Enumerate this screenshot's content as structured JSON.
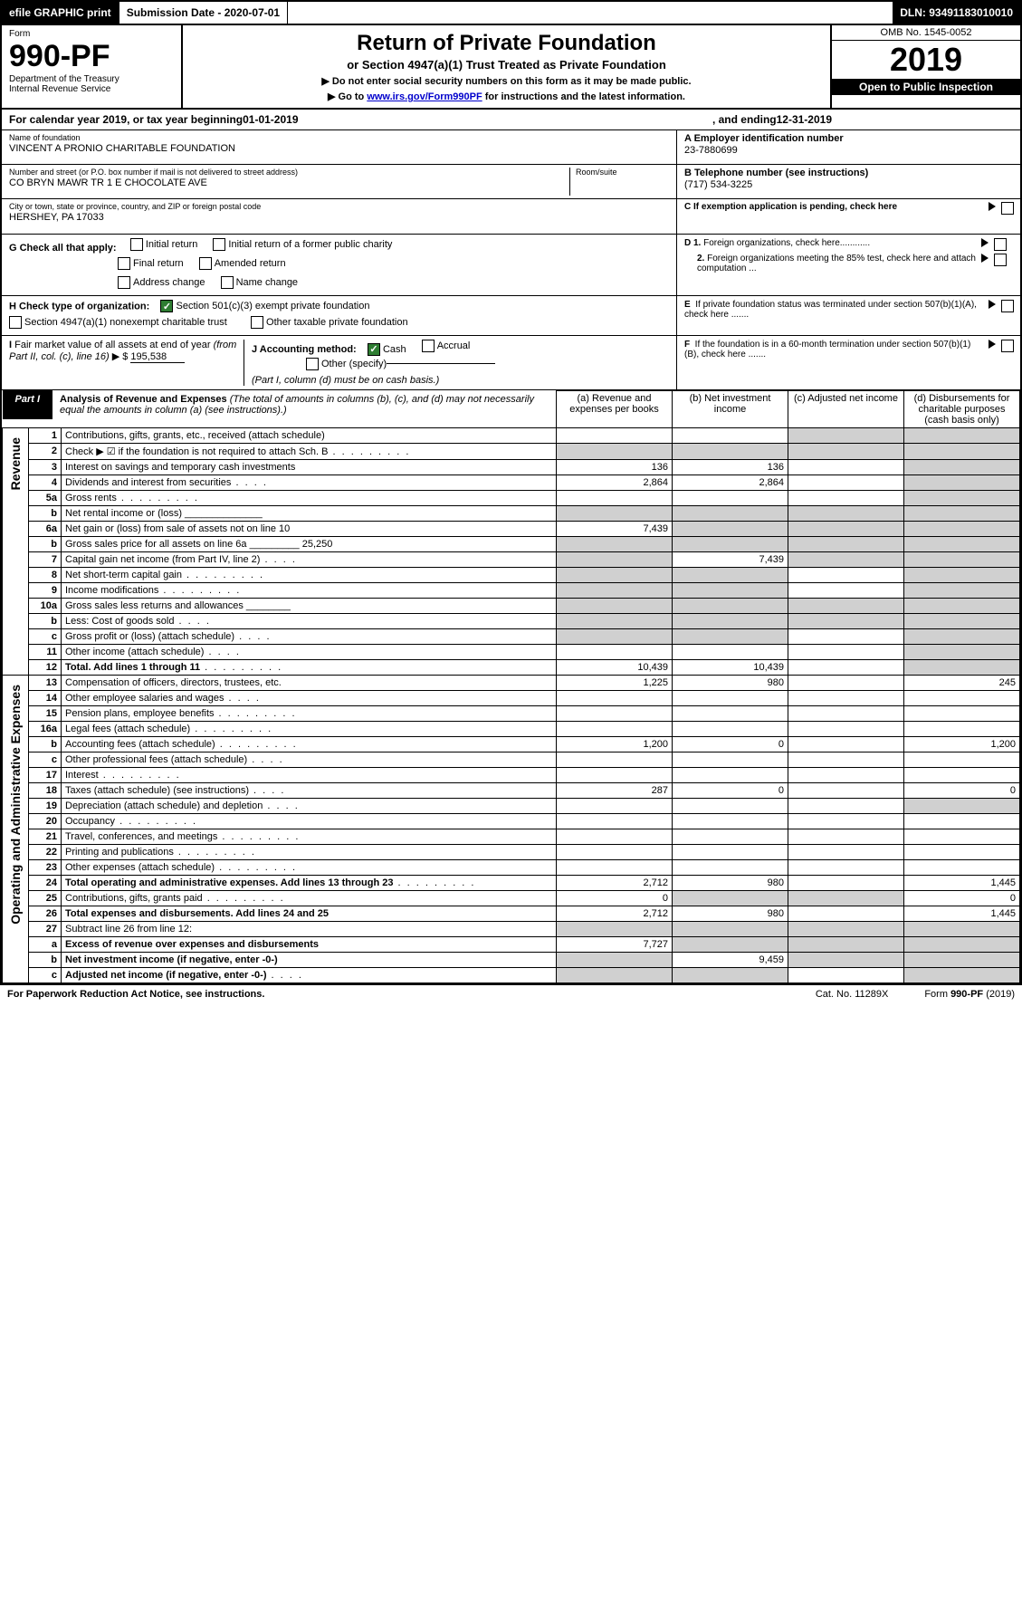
{
  "topbar": {
    "efile": "efile GRAPHIC print",
    "submission_label": "Submission Date - 2020-07-01",
    "dln_label": "DLN: 93491183010010"
  },
  "form": {
    "form_label": "Form",
    "number": "990-PF",
    "dept": "Department of the Treasury",
    "irs": "Internal Revenue Service",
    "title": "Return of Private Foundation",
    "subtitle": "or Section 4947(a)(1) Trust Treated as Private Foundation",
    "note1": "▶ Do not enter social security numbers on this form as it may be made public.",
    "note2_prefix": "▶ Go to ",
    "note2_link": "www.irs.gov/Form990PF",
    "note2_suffix": " for instructions and the latest information.",
    "omb": "OMB No. 1545-0052",
    "year": "2019",
    "inspection": "Open to Public Inspection"
  },
  "calendar": {
    "prefix": "For calendar year 2019, or tax year beginning ",
    "begin": "01-01-2019",
    "mid": ", and ending ",
    "end": "12-31-2019"
  },
  "entity": {
    "name_label": "Name of foundation",
    "name": "VINCENT A PRONIO CHARITABLE FOUNDATION",
    "street_label": "Number and street (or P.O. box number if mail is not delivered to street address)",
    "street": "CO BRYN MAWR TR 1 E CHOCOLATE AVE",
    "room_label": "Room/suite",
    "city_label": "City or town, state or province, country, and ZIP or foreign postal code",
    "city": "HERSHEY, PA  17033",
    "ein_label": "A Employer identification number",
    "ein": "23-7880699",
    "phone_label": "B Telephone number (see instructions)",
    "phone": "(717) 534-3225",
    "c_label": "C If exemption application is pending, check here"
  },
  "checks": {
    "g_label": "G Check all that apply:",
    "initial": "Initial return",
    "initial_former": "Initial return of a former public charity",
    "final": "Final return",
    "amended": "Amended return",
    "addr": "Address change",
    "name_change": "Name change",
    "h_label": "H Check type of organization:",
    "sec501": "Section 501(c)(3) exempt private foundation",
    "sec4947": "Section 4947(a)(1) nonexempt charitable trust",
    "other_taxable": "Other taxable private foundation",
    "i_label": "I Fair market value of all assets at end of year (from Part II, col. (c), line 16) ▶ $",
    "i_value": "195,538",
    "j_label": "J Accounting method:",
    "cash": "Cash",
    "accrual": "Accrual",
    "other_spec": "Other (specify)",
    "j_note": "(Part I, column (d) must be on cash basis.)",
    "d1": "D 1. Foreign organizations, check here............",
    "d2": "2. Foreign organizations meeting the 85% test, check here and attach computation ...",
    "e_label": "E  If private foundation status was terminated under section 507(b)(1)(A), check here .......",
    "f_label": "F  If the foundation is in a 60-month termination under section 507(b)(1)(B), check here ......."
  },
  "part1": {
    "tab": "Part I",
    "title": "Analysis of Revenue and Expenses",
    "note": " (The total of amounts in columns (b), (c), and (d) may not necessarily equal the amounts in column (a) (see instructions).)",
    "col_a": "(a)   Revenue and expenses per books",
    "col_b": "(b)  Net investment income",
    "col_c": "(c)  Adjusted net income",
    "col_d": "(d)  Disbursements for charitable purposes (cash basis only)",
    "revenue_label": "Revenue",
    "expenses_label": "Operating and Administrative Expenses"
  },
  "rows": [
    {
      "n": "1",
      "d": "Contributions, gifts, grants, etc., received (attach schedule)",
      "a": "",
      "b": "",
      "c": "g",
      "dcol": "g"
    },
    {
      "n": "2",
      "d": "Check ▶ ☑ if the foundation is not required to attach Sch. B",
      "a": "g",
      "b": "g",
      "c": "g",
      "dcol": "g",
      "dots": true
    },
    {
      "n": "3",
      "d": "Interest on savings and temporary cash investments",
      "a": "136",
      "b": "136",
      "c": "",
      "dcol": "g"
    },
    {
      "n": "4",
      "d": "Dividends and interest from securities",
      "a": "2,864",
      "b": "2,864",
      "c": "",
      "dcol": "g",
      "dots": "short"
    },
    {
      "n": "5a",
      "d": "Gross rents",
      "a": "",
      "b": "",
      "c": "",
      "dcol": "g",
      "dots": true
    },
    {
      "n": "b",
      "d": "Net rental income or (loss)    ______________",
      "a": "g",
      "b": "g",
      "c": "g",
      "dcol": "g"
    },
    {
      "n": "6a",
      "d": "Net gain or (loss) from sale of assets not on line 10",
      "a": "7,439",
      "b": "g",
      "c": "g",
      "dcol": "g"
    },
    {
      "n": "b",
      "d": "Gross sales price for all assets on line 6a _________ 25,250",
      "a": "g",
      "b": "g",
      "c": "g",
      "dcol": "g"
    },
    {
      "n": "7",
      "d": "Capital gain net income (from Part IV, line 2)",
      "a": "g",
      "b": "7,439",
      "c": "g",
      "dcol": "g",
      "dots": "short"
    },
    {
      "n": "8",
      "d": "Net short-term capital gain",
      "a": "g",
      "b": "g",
      "c": "",
      "dcol": "g",
      "dots": true
    },
    {
      "n": "9",
      "d": "Income modifications",
      "a": "g",
      "b": "g",
      "c": "",
      "dcol": "g",
      "dots": true
    },
    {
      "n": "10a",
      "d": "Gross sales less returns and allowances   ________",
      "a": "g",
      "b": "g",
      "c": "g",
      "dcol": "g"
    },
    {
      "n": "b",
      "d": "Less: Cost of goods sold",
      "a": "g",
      "b": "g",
      "c": "g",
      "dcol": "g",
      "dots": "short"
    },
    {
      "n": "c",
      "d": "Gross profit or (loss) (attach schedule)",
      "a": "g",
      "b": "g",
      "c": "",
      "dcol": "g",
      "dots": "short"
    },
    {
      "n": "11",
      "d": "Other income (attach schedule)",
      "a": "",
      "b": "",
      "c": "",
      "dcol": "g",
      "dots": "short"
    },
    {
      "n": "12",
      "d": "Total. Add lines 1 through 11",
      "a": "10,439",
      "b": "10,439",
      "c": "",
      "dcol": "g",
      "bold": true,
      "dots": true
    }
  ],
  "exp_rows": [
    {
      "n": "13",
      "d": "Compensation of officers, directors, trustees, etc.",
      "a": "1,225",
      "b": "980",
      "c": "",
      "dcol": "245"
    },
    {
      "n": "14",
      "d": "Other employee salaries and wages",
      "a": "",
      "b": "",
      "c": "",
      "dcol": "",
      "dots": "short"
    },
    {
      "n": "15",
      "d": "Pension plans, employee benefits",
      "a": "",
      "b": "",
      "c": "",
      "dcol": "",
      "dots": true
    },
    {
      "n": "16a",
      "d": "Legal fees (attach schedule)",
      "a": "",
      "b": "",
      "c": "",
      "dcol": "",
      "dots": true
    },
    {
      "n": "b",
      "d": "Accounting fees (attach schedule)",
      "a": "1,200",
      "b": "0",
      "c": "",
      "dcol": "1,200",
      "dots": true
    },
    {
      "n": "c",
      "d": "Other professional fees (attach schedule)",
      "a": "",
      "b": "",
      "c": "",
      "dcol": "",
      "dots": "short"
    },
    {
      "n": "17",
      "d": "Interest",
      "a": "",
      "b": "",
      "c": "",
      "dcol": "",
      "dots": true
    },
    {
      "n": "18",
      "d": "Taxes (attach schedule) (see instructions)",
      "a": "287",
      "b": "0",
      "c": "",
      "dcol": "0",
      "dots": "short"
    },
    {
      "n": "19",
      "d": "Depreciation (attach schedule) and depletion",
      "a": "",
      "b": "",
      "c": "",
      "dcol": "g",
      "dots": "short"
    },
    {
      "n": "20",
      "d": "Occupancy",
      "a": "",
      "b": "",
      "c": "",
      "dcol": "",
      "dots": true
    },
    {
      "n": "21",
      "d": "Travel, conferences, and meetings",
      "a": "",
      "b": "",
      "c": "",
      "dcol": "",
      "dots": true
    },
    {
      "n": "22",
      "d": "Printing and publications",
      "a": "",
      "b": "",
      "c": "",
      "dcol": "",
      "dots": true
    },
    {
      "n": "23",
      "d": "Other expenses (attach schedule)",
      "a": "",
      "b": "",
      "c": "",
      "dcol": "",
      "dots": true
    },
    {
      "n": "24",
      "d": "Total operating and administrative expenses. Add lines 13 through 23",
      "a": "2,712",
      "b": "980",
      "c": "",
      "dcol": "1,445",
      "bold": true,
      "dots": true
    },
    {
      "n": "25",
      "d": "Contributions, gifts, grants paid",
      "a": "0",
      "b": "g",
      "c": "g",
      "dcol": "0",
      "dots": true
    },
    {
      "n": "26",
      "d": "Total expenses and disbursements. Add lines 24 and 25",
      "a": "2,712",
      "b": "980",
      "c": "",
      "dcol": "1,445",
      "bold": true
    },
    {
      "n": "27",
      "d": "Subtract line 26 from line 12:",
      "a": "g",
      "b": "g",
      "c": "g",
      "dcol": "g"
    },
    {
      "n": "a",
      "d": "Excess of revenue over expenses and disbursements",
      "a": "7,727",
      "b": "g",
      "c": "g",
      "dcol": "g",
      "bold": true
    },
    {
      "n": "b",
      "d": "Net investment income (if negative, enter -0-)",
      "a": "g",
      "b": "9,459",
      "c": "g",
      "dcol": "g",
      "bold": true
    },
    {
      "n": "c",
      "d": "Adjusted net income (if negative, enter -0-)",
      "a": "g",
      "b": "g",
      "c": "",
      "dcol": "g",
      "bold": true,
      "dots": "short"
    }
  ],
  "footer": {
    "left": "For Paperwork Reduction Act Notice, see instructions.",
    "mid": "Cat. No. 11289X",
    "right": "Form 990-PF (2019)"
  }
}
